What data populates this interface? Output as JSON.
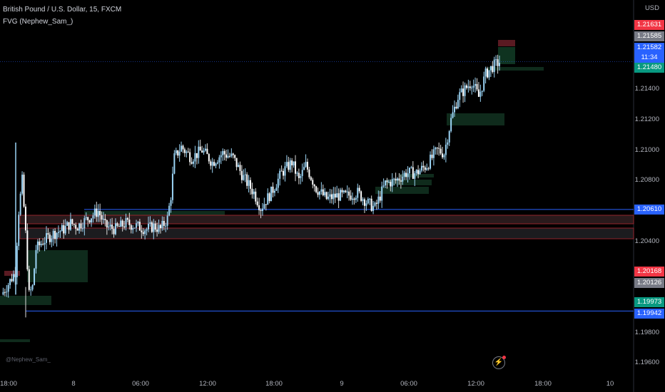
{
  "header": {
    "symbol_line": "British Pound / U.S. Dollar, 15, FXCM",
    "indicator_line": "FVG (Nephew_Sam_)"
  },
  "watermark": "@Nephew_Sam_",
  "alert_icon": "lightning-icon",
  "colors": {
    "bull": "#2c6eb3",
    "bull_wick": "#9bd4f5",
    "bear": "#ffffff",
    "level_line": "#2962ff",
    "fvg_bull": "#0f2b1c",
    "zone_red": "#b22833"
  },
  "chart_data": {
    "type": "candlestick",
    "y_axis_unit": "USD",
    "ylim": [
      1.1955,
      1.218
    ],
    "y_ticks": [
      "1.21400",
      "1.21200",
      "1.21000",
      "1.20800",
      "1.20400",
      "1.19800",
      "1.19600"
    ],
    "x_ticks": [
      "18:00",
      "8",
      "06:00",
      "12:00",
      "18:00",
      "9",
      "06:00",
      "12:00",
      "18:00",
      "10"
    ],
    "price_labels": [
      {
        "text": "1.21631",
        "price": 1.21631,
        "color": "#f23645"
      },
      {
        "text": "1.21585",
        "price": 1.21585,
        "color": "#787b86"
      },
      {
        "text": "1.21582",
        "sub": "11:34",
        "price": 1.21582,
        "color": "#2962ff"
      },
      {
        "text": "1.21480",
        "price": 1.2148,
        "color": "#089981"
      },
      {
        "text": "1.20610",
        "price": 1.2061,
        "color": "#2962ff"
      },
      {
        "text": "1.20168",
        "price": 1.20168,
        "color": "#f23645"
      },
      {
        "text": "1.20126",
        "price": 1.20126,
        "color": "#787b86"
      },
      {
        "text": "1.19973",
        "price": 1.19973,
        "color": "#089981"
      },
      {
        "text": "1.19942",
        "price": 1.19942,
        "color": "#2962ff"
      }
    ],
    "levels": [
      1.2061,
      1.19942
    ],
    "current_price": 1.21582,
    "close_path": [
      [
        0,
        1.2005
      ],
      [
        4,
        1.2012
      ],
      [
        8,
        1.202
      ],
      [
        10,
        1.206
      ],
      [
        12,
        1.208
      ],
      [
        14,
        1.2045
      ],
      [
        16,
        1.2005
      ],
      [
        18,
        1.201
      ],
      [
        20,
        1.2035
      ],
      [
        24,
        1.204
      ],
      [
        30,
        1.2045
      ],
      [
        36,
        1.2048
      ],
      [
        40,
        1.2052
      ],
      [
        44,
        1.205
      ],
      [
        50,
        1.2055
      ],
      [
        56,
        1.206
      ],
      [
        60,
        1.205
      ],
      [
        66,
        1.2048
      ],
      [
        72,
        1.2052
      ],
      [
        78,
        1.205
      ],
      [
        84,
        1.2048
      ],
      [
        88,
        1.205
      ],
      [
        92,
        1.2048
      ],
      [
        96,
        1.2055
      ],
      [
        98,
        1.207
      ],
      [
        100,
        1.2095
      ],
      [
        104,
        1.2102
      ],
      [
        110,
        1.2095
      ],
      [
        116,
        1.21
      ],
      [
        122,
        1.2092
      ],
      [
        128,
        1.2098
      ],
      [
        134,
        1.2095
      ],
      [
        140,
        1.2082
      ],
      [
        146,
        1.2072
      ],
      [
        150,
        1.2062
      ],
      [
        156,
        1.2072
      ],
      [
        162,
        1.2085
      ],
      [
        168,
        1.2092
      ],
      [
        172,
        1.208
      ],
      [
        176,
        1.209
      ],
      [
        182,
        1.2075
      ],
      [
        188,
        1.2068
      ],
      [
        194,
        1.207
      ],
      [
        200,
        1.207
      ],
      [
        206,
        1.2072
      ],
      [
        212,
        1.2065
      ],
      [
        216,
        1.2062
      ],
      [
        222,
        1.2078
      ],
      [
        228,
        1.208
      ],
      [
        234,
        1.2085
      ],
      [
        240,
        1.2085
      ],
      [
        246,
        1.209
      ],
      [
        252,
        1.21
      ],
      [
        256,
        1.2098
      ],
      [
        260,
        1.212
      ],
      [
        264,
        1.2135
      ],
      [
        268,
        1.214
      ],
      [
        272,
        1.2145
      ],
      [
        276,
        1.2135
      ],
      [
        280,
        1.215
      ],
      [
        284,
        1.2155
      ],
      [
        288,
        1.2158
      ]
    ]
  }
}
